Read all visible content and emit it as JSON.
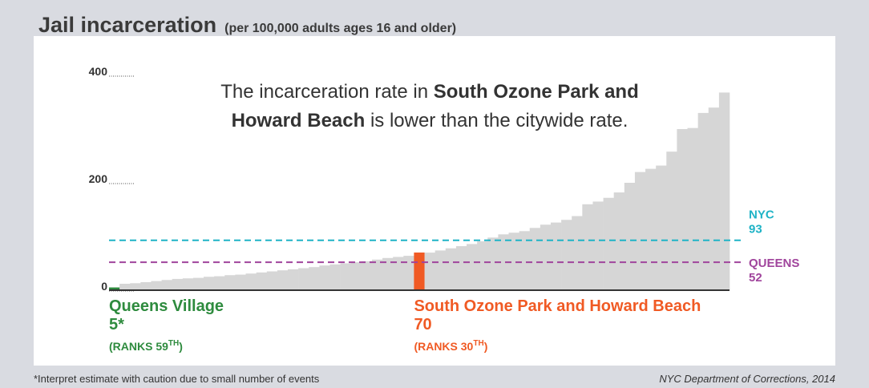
{
  "chart_data": {
    "type": "bar",
    "title": "Jail incarceration",
    "subtitle": "(per 100,000 adults ages 16 and older)",
    "annotation": [
      [
        "The incarceration rate in ",
        "South Ozone Park and"
      ],
      [
        "Howard Beach",
        " is lower than the citywide rate."
      ]
    ],
    "annotation_bold": [
      [
        false,
        true
      ],
      [
        true,
        false
      ]
    ],
    "ylim": [
      0,
      400
    ],
    "yticks": [
      0,
      200,
      400
    ],
    "series": [
      {
        "color": "#d6d6d6",
        "values": [
          5,
          12,
          13,
          15,
          17,
          19,
          21,
          22,
          23,
          25,
          26,
          28,
          29,
          31,
          33,
          35,
          37,
          39,
          41,
          43,
          46,
          48,
          50,
          52,
          54,
          57,
          60,
          62,
          64,
          70,
          70,
          74,
          78,
          82,
          86,
          91,
          98,
          104,
          107,
          110,
          116,
          122,
          126,
          131,
          138,
          160,
          165,
          172,
          182,
          200,
          220,
          226,
          232,
          258,
          300,
          302,
          330,
          340,
          368
        ],
        "value_labels": [
          "5*",
          null,
          null,
          null,
          null,
          null,
          null,
          null,
          null,
          null,
          null,
          null,
          null,
          null,
          null,
          null,
          null,
          null,
          null,
          null,
          null,
          null,
          null,
          null,
          null,
          null,
          null,
          null,
          null,
          "70",
          null,
          null,
          null,
          null,
          null,
          null,
          null,
          null,
          null,
          null,
          null,
          null,
          null,
          null,
          null,
          null,
          null,
          null,
          null,
          null,
          null,
          null,
          null,
          null,
          null,
          null,
          null,
          null,
          null
        ]
      }
    ],
    "highlights": [
      {
        "index": 0,
        "name": "Queens Village",
        "color": "#2e8b3e",
        "rank": [
          "(RANKS 59",
          "TH",
          ")"
        ]
      },
      {
        "index": 29,
        "name": "South Ozone Park and Howard Beach",
        "color": "#f05a24",
        "rank": [
          "(RANKS 30",
          "TH",
          ")"
        ]
      }
    ],
    "reference_lines": [
      {
        "name": "NYC",
        "value": 93,
        "color": "#1fb3c6",
        "label_position": "above"
      },
      {
        "name": "QUEENS",
        "value": 52,
        "color": "#a0449c",
        "label_position": "below"
      }
    ],
    "footnote": "*Interpret estimate with caution due to small number of events",
    "source": "NYC Department of Corrections, 2014"
  }
}
